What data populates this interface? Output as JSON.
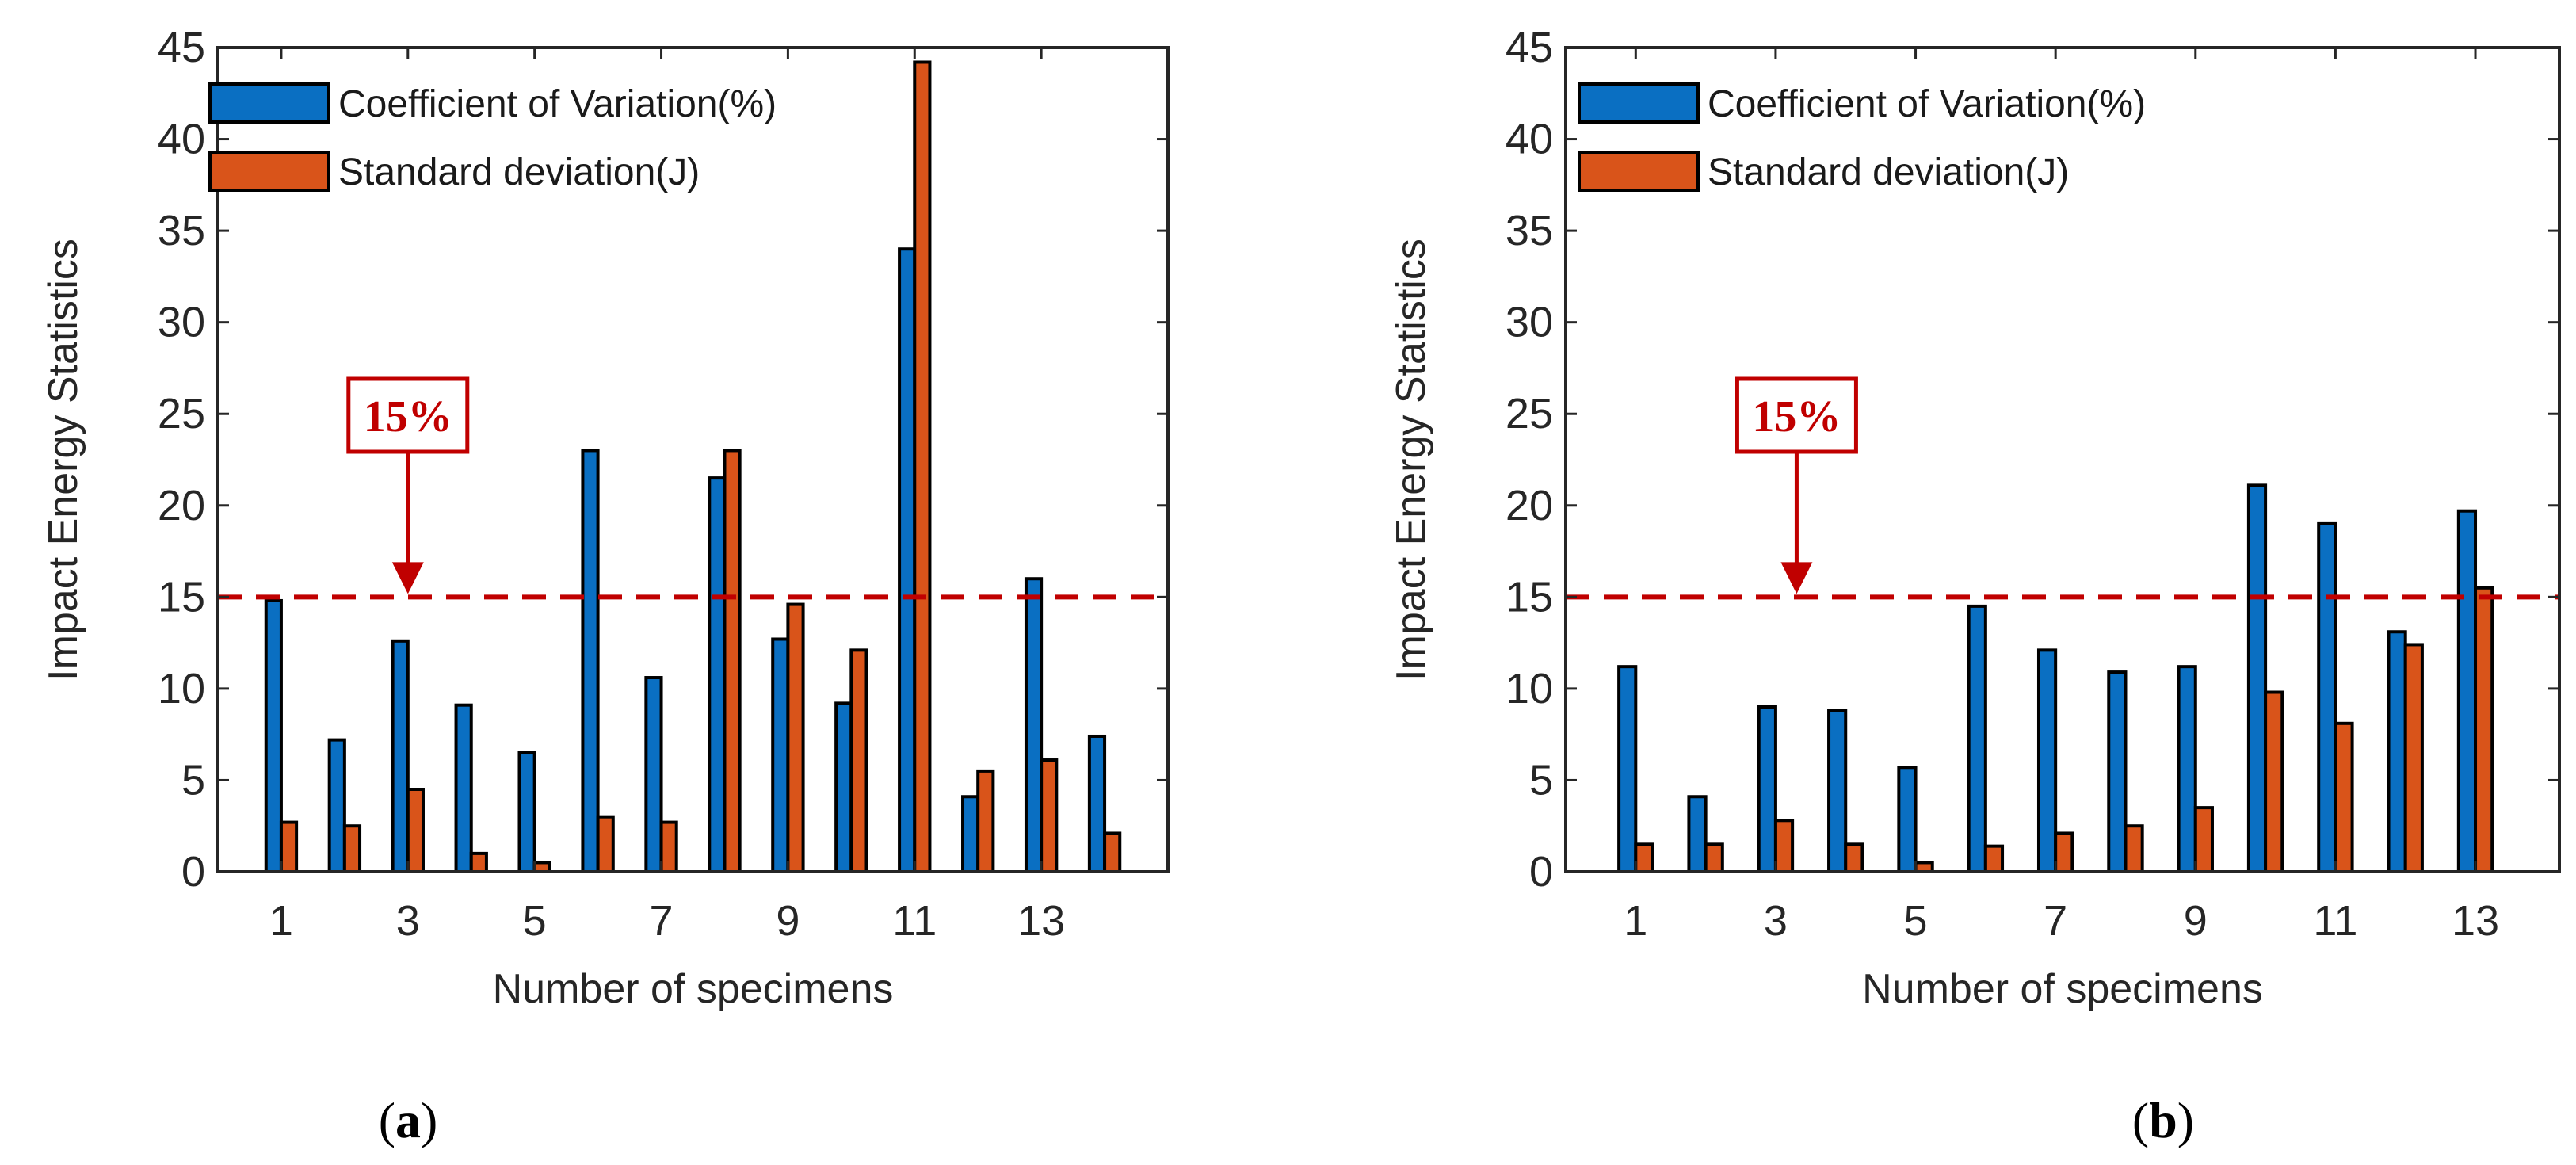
{
  "colors": {
    "series1": "#0a6fc2",
    "series2": "#d9541a",
    "threshold": "#c00000",
    "axis": "#262626"
  },
  "chart_data": [
    {
      "type": "bar",
      "panel_label": {
        "open": "(",
        "letter": "a",
        "close": ")"
      },
      "x": [
        1,
        2,
        3,
        4,
        5,
        6,
        7,
        8,
        9,
        10,
        11,
        12,
        13,
        14
      ],
      "xticks": [
        "1",
        "3",
        "5",
        "7",
        "9",
        "11",
        "13"
      ],
      "xtick_values": [
        1,
        3,
        5,
        7,
        9,
        11,
        13
      ],
      "xlim": [
        0,
        15
      ],
      "ylim": [
        0,
        45
      ],
      "yticks": [
        "0",
        "5",
        "10",
        "15",
        "20",
        "25",
        "30",
        "35",
        "40",
        "45"
      ],
      "ytick_values": [
        0,
        5,
        10,
        15,
        20,
        25,
        30,
        35,
        40,
        45
      ],
      "xlabel": "Number of specimens",
      "ylabel": "Impact Energy Statistics",
      "legend_position": "top-left",
      "grid": false,
      "series": [
        {
          "name": "Coefficient of Variation(%)",
          "values": [
            14.8,
            7.2,
            12.6,
            9.1,
            6.5,
            23.0,
            10.6,
            21.5,
            12.7,
            9.2,
            34.0,
            4.1,
            16.0,
            7.4
          ]
        },
        {
          "name": "Standard deviation(J)",
          "values": [
            2.7,
            2.5,
            4.5,
            1.0,
            0.5,
            3.0,
            2.7,
            23.0,
            14.6,
            12.1,
            44.2,
            5.5,
            6.1,
            2.1
          ]
        }
      ],
      "threshold": {
        "value": 15,
        "label": "15%",
        "arrow_x": 3.0
      }
    },
    {
      "type": "bar",
      "panel_label": {
        "open": "(",
        "letter": "b",
        "close": ")"
      },
      "x": [
        1,
        2,
        3,
        4,
        5,
        6,
        7,
        8,
        9,
        10,
        11,
        12,
        13
      ],
      "xticks": [
        "1",
        "3",
        "5",
        "7",
        "9",
        "11",
        "13"
      ],
      "xtick_values": [
        1,
        3,
        5,
        7,
        9,
        11,
        13
      ],
      "xlim": [
        0,
        14.2
      ],
      "ylim": [
        0,
        45
      ],
      "yticks": [
        "0",
        "5",
        "10",
        "15",
        "20",
        "25",
        "30",
        "35",
        "40",
        "45"
      ],
      "ytick_values": [
        0,
        5,
        10,
        15,
        20,
        25,
        30,
        35,
        40,
        45
      ],
      "xlabel": "Number of specimens",
      "ylabel": "Impact Energy Statistics",
      "legend_position": "top-left",
      "grid": false,
      "series": [
        {
          "name": "Coefficient of Variation(%)",
          "values": [
            11.2,
            4.1,
            9.0,
            8.8,
            5.7,
            14.5,
            12.1,
            10.9,
            11.2,
            21.1,
            19.0,
            13.1,
            19.7
          ]
        },
        {
          "name": "Standard deviation(J)",
          "values": [
            1.5,
            1.5,
            2.8,
            1.5,
            0.5,
            1.4,
            2.1,
            2.5,
            3.5,
            9.8,
            8.1,
            12.4,
            15.5
          ]
        }
      ],
      "threshold": {
        "value": 15,
        "label": "15%",
        "arrow_x": 3.3
      }
    }
  ]
}
